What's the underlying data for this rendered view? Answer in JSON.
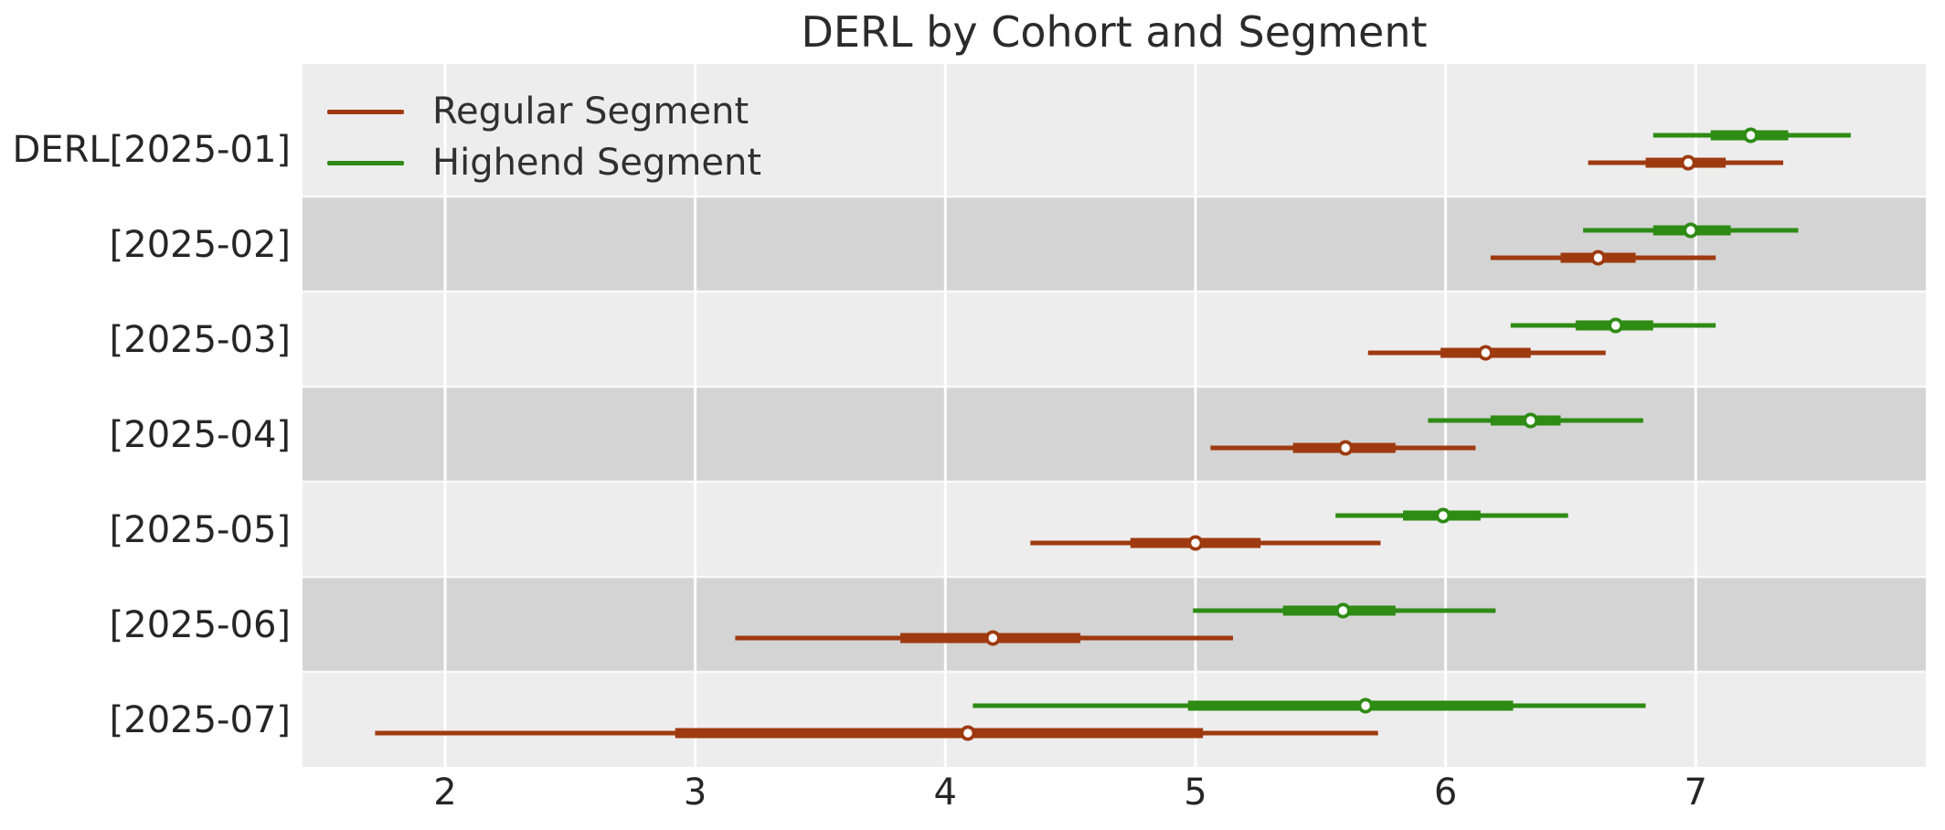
{
  "chart_data": {
    "type": "forest_interval",
    "title": "DERL by Cohort and Segment",
    "xlabel": "",
    "ylabel": "",
    "x_ticks": [
      2,
      3,
      4,
      5,
      6,
      7
    ],
    "xlim": [
      1.43,
      7.92
    ],
    "grid": "vertical white gridlines on gray plot background",
    "plot_bg_color": "#ededed",
    "shaded_band_color": "#d4d4d4",
    "marker": "open-circle",
    "legend": {
      "position": "upper-left",
      "entries": [
        {
          "label": "Regular Segment",
          "color": "#9e3a0f"
        },
        {
          "label": "Highend Segment",
          "color": "#2e8b14"
        }
      ]
    },
    "rows": [
      {
        "label": "DERL[2025-01]",
        "shaded": false,
        "series": [
          {
            "name": "Regular Segment",
            "median": 6.97,
            "interval_50": [
              6.8,
              7.12
            ],
            "interval_95": [
              6.57,
              7.35
            ]
          },
          {
            "name": "Highend Segment",
            "median": 7.22,
            "interval_50": [
              7.06,
              7.37
            ],
            "interval_95": [
              6.83,
              7.62
            ]
          }
        ]
      },
      {
        "label": "[2025-02]",
        "shaded": true,
        "series": [
          {
            "name": "Regular Segment",
            "median": 6.61,
            "interval_50": [
              6.46,
              6.76
            ],
            "interval_95": [
              6.18,
              7.08
            ]
          },
          {
            "name": "Highend Segment",
            "median": 6.98,
            "interval_50": [
              6.83,
              7.14
            ],
            "interval_95": [
              6.55,
              7.41
            ]
          }
        ]
      },
      {
        "label": "[2025-03]",
        "shaded": false,
        "series": [
          {
            "name": "Regular Segment",
            "median": 6.16,
            "interval_50": [
              5.98,
              6.34
            ],
            "interval_95": [
              5.69,
              6.64
            ]
          },
          {
            "name": "Highend Segment",
            "median": 6.68,
            "interval_50": [
              6.52,
              6.83
            ],
            "interval_95": [
              6.26,
              7.08
            ]
          }
        ]
      },
      {
        "label": "[2025-04]",
        "shaded": true,
        "series": [
          {
            "name": "Regular Segment",
            "median": 5.6,
            "interval_50": [
              5.39,
              5.8
            ],
            "interval_95": [
              5.06,
              6.12
            ]
          },
          {
            "name": "Highend Segment",
            "median": 6.34,
            "interval_50": [
              6.18,
              6.46
            ],
            "interval_95": [
              5.93,
              6.79
            ]
          }
        ]
      },
      {
        "label": "[2025-05]",
        "shaded": false,
        "series": [
          {
            "name": "Regular Segment",
            "median": 5.0,
            "interval_50": [
              4.74,
              5.26
            ],
            "interval_95": [
              4.34,
              5.74
            ]
          },
          {
            "name": "Highend Segment",
            "median": 5.99,
            "interval_50": [
              5.83,
              6.14
            ],
            "interval_95": [
              5.56,
              6.49
            ]
          }
        ]
      },
      {
        "label": "[2025-06]",
        "shaded": true,
        "series": [
          {
            "name": "Regular Segment",
            "median": 4.19,
            "interval_50": [
              3.82,
              4.54
            ],
            "interval_95": [
              3.16,
              5.15
            ]
          },
          {
            "name": "Highend Segment",
            "median": 5.59,
            "interval_50": [
              5.35,
              5.8
            ],
            "interval_95": [
              4.99,
              6.2
            ]
          }
        ]
      },
      {
        "label": "[2025-07]",
        "shaded": false,
        "series": [
          {
            "name": "Regular Segment",
            "median": 4.09,
            "interval_50": [
              2.92,
              5.03
            ],
            "interval_95": [
              1.72,
              5.73
            ]
          },
          {
            "name": "Highend Segment",
            "median": 5.68,
            "interval_50": [
              4.97,
              6.27
            ],
            "interval_95": [
              4.11,
              6.8
            ]
          }
        ]
      }
    ]
  }
}
